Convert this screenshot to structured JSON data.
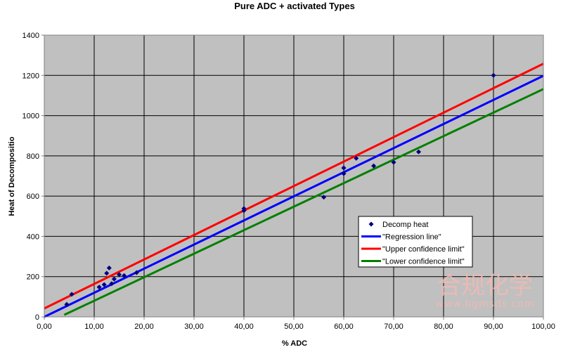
{
  "chart_data": {
    "type": "scatter",
    "title": "Pure ADC + activated Types",
    "xlabel": "% ADC",
    "ylabel": "Heat of Decompositio",
    "xlim": [
      0,
      100
    ],
    "ylim": [
      0,
      1400
    ],
    "x_ticks": [
      "0,00",
      "10,00",
      "20,00",
      "30,00",
      "40,00",
      "50,00",
      "60,00",
      "70,00",
      "80,00",
      "90,00",
      "100,00"
    ],
    "y_ticks": [
      "0",
      "200",
      "400",
      "600",
      "800",
      "1000",
      "1200",
      "1400"
    ],
    "grid": true,
    "legend_position": "lower-right",
    "series": [
      {
        "name": "Decomp heat",
        "kind": "points",
        "color": "#000080",
        "points": [
          [
            4.5,
            62
          ],
          [
            5.5,
            112
          ],
          [
            11,
            148
          ],
          [
            12,
            160
          ],
          [
            12.5,
            217
          ],
          [
            13,
            243
          ],
          [
            13.5,
            165
          ],
          [
            14,
            188
          ],
          [
            15,
            210
          ],
          [
            16,
            205
          ],
          [
            18.5,
            220
          ],
          [
            40,
            528
          ],
          [
            40,
            538
          ],
          [
            56,
            595
          ],
          [
            60,
            712
          ],
          [
            60,
            740
          ],
          [
            62.5,
            788
          ],
          [
            66,
            750
          ],
          [
            70,
            768
          ],
          [
            75,
            820
          ],
          [
            90,
            1200
          ]
        ]
      },
      {
        "name": "\"Regression line\"",
        "kind": "line",
        "color": "#0000ff",
        "points": [
          [
            0,
            0
          ],
          [
            100,
            1198
          ]
        ]
      },
      {
        "name": "\"Upper confidence limit\"",
        "kind": "line",
        "color": "#ff0000",
        "points": [
          [
            0,
            42
          ],
          [
            100,
            1258
          ]
        ]
      },
      {
        "name": "\"Lower confidence limit\"",
        "kind": "line",
        "color": "#008000",
        "points": [
          [
            4,
            10
          ],
          [
            100,
            1132
          ]
        ]
      }
    ],
    "plot_background": "#c0c0c0"
  },
  "watermark": {
    "text": "合规化学",
    "url": "www.hgmsds.com",
    "color": "#f3b9b3"
  }
}
